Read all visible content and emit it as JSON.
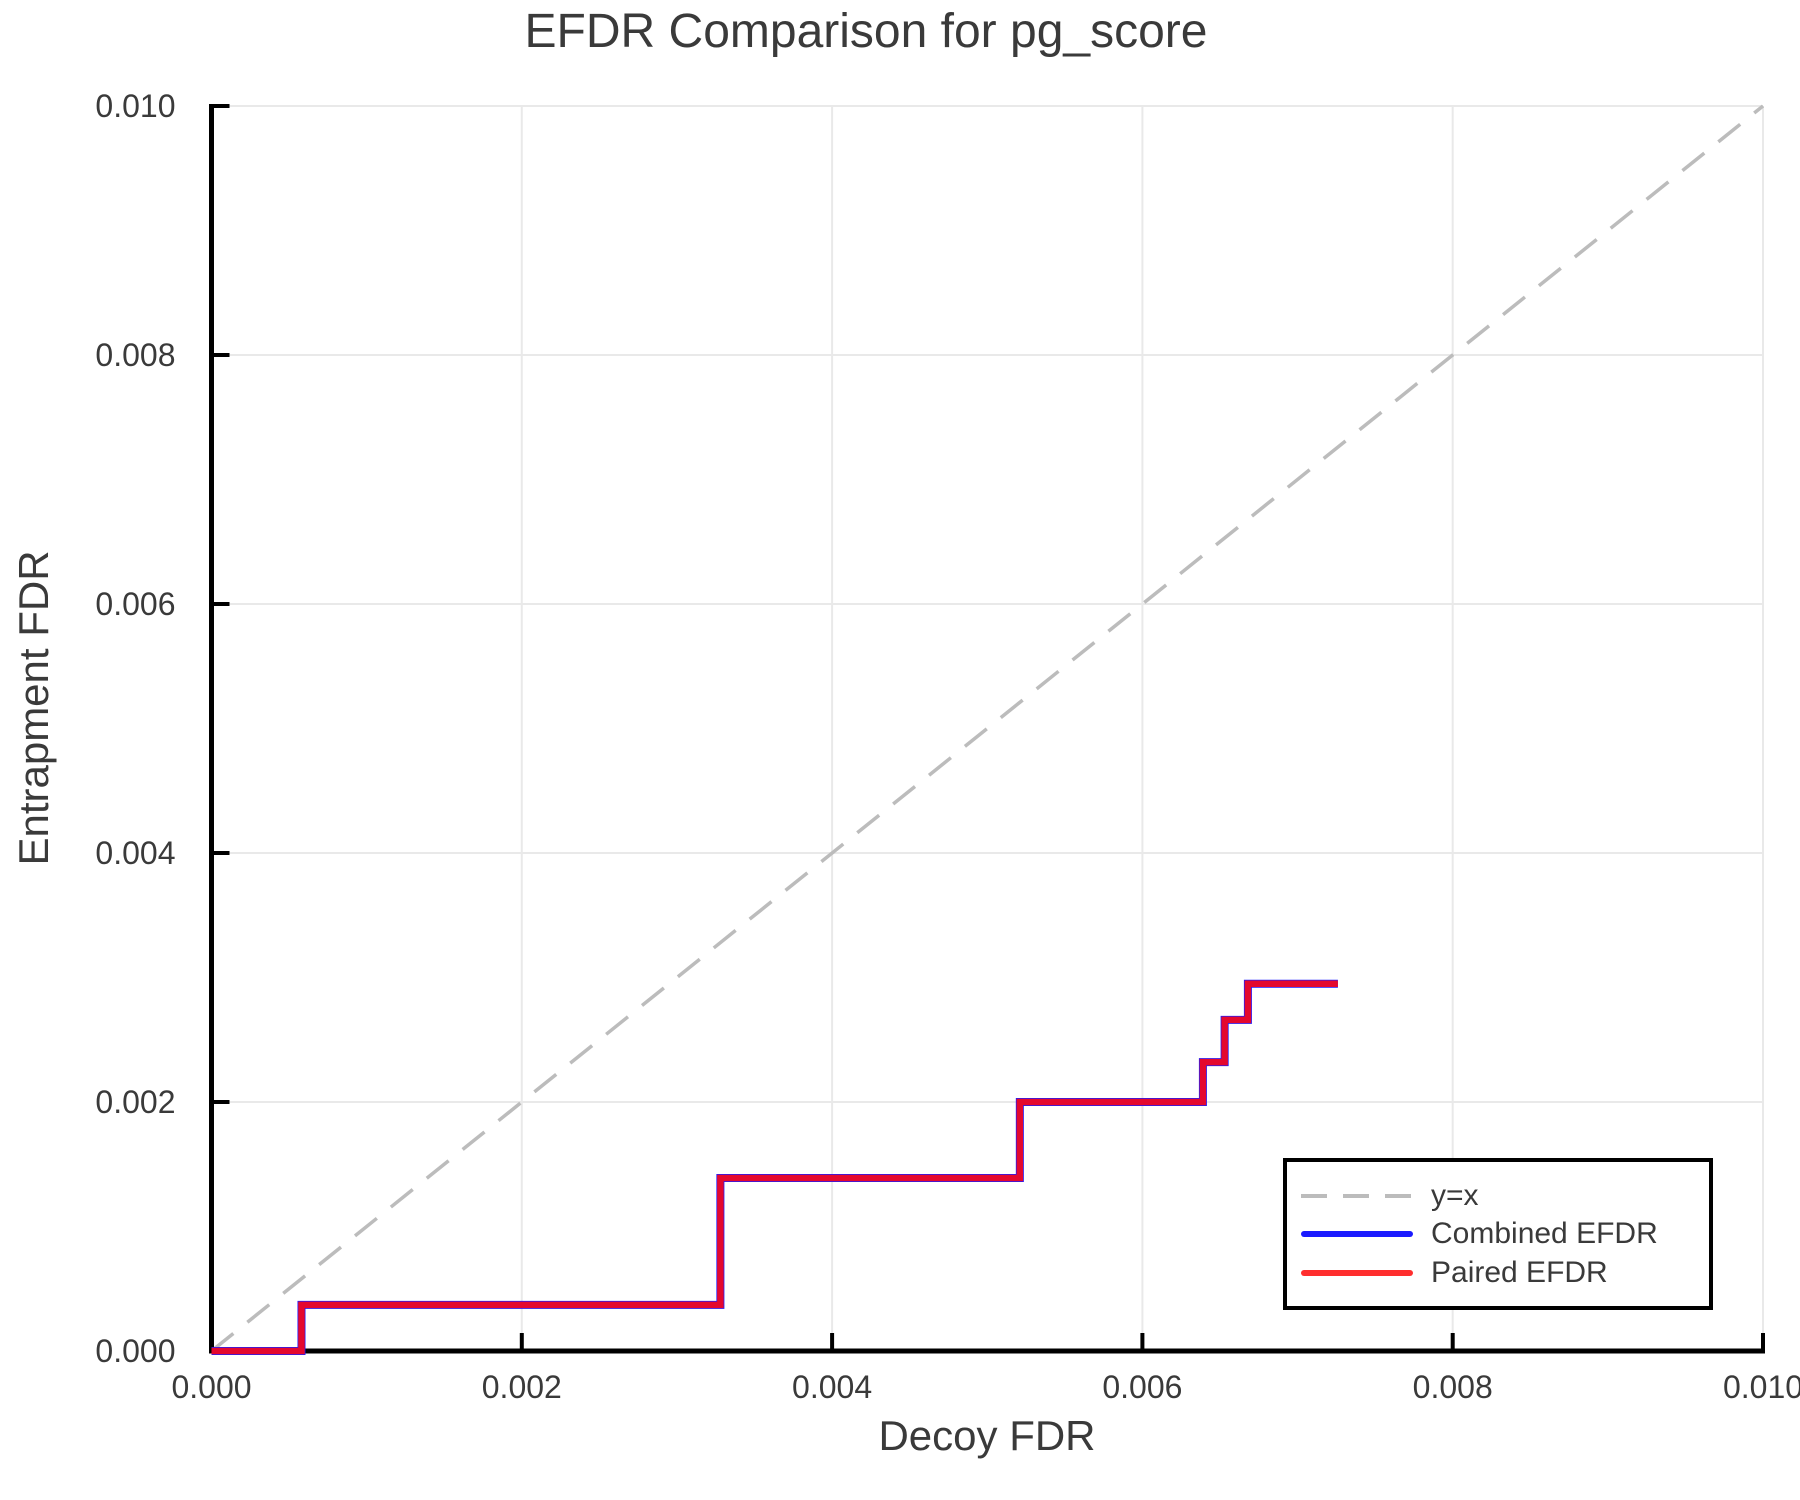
{
  "chart_data": {
    "type": "line",
    "title": "EFDR Comparison for pg_score",
    "xlabel": "Decoy FDR",
    "ylabel": "Entrapment FDR",
    "xlim": [
      0.0,
      0.01
    ],
    "ylim": [
      0.0,
      0.01
    ],
    "xticks": [
      0.0,
      0.002,
      0.004,
      0.006,
      0.008,
      0.01
    ],
    "xtick_labels": [
      "0.000",
      "0.002",
      "0.004",
      "0.006",
      "0.008",
      "0.010"
    ],
    "yticks": [
      0.0,
      0.002,
      0.004,
      0.006,
      0.008,
      0.01
    ],
    "ytick_labels": [
      "0.000",
      "0.002",
      "0.004",
      "0.006",
      "0.008",
      "0.010"
    ],
    "grid": true,
    "legend_position": "lower right",
    "grid_color": "#e9e9e9",
    "axis_color": "#000000",
    "text_color": "#3a3a3a",
    "background_color": "#ffffff",
    "series": [
      {
        "name": "y=x",
        "draw": "line",
        "style": "dashed",
        "color": "#bcbcbc",
        "width": 3.5,
        "points": [
          [
            0.0,
            0.0
          ],
          [
            0.01,
            0.01
          ]
        ]
      },
      {
        "name": "Combined EFDR",
        "draw": "step-post",
        "style": "solid",
        "color": "#1a1aff",
        "width": 8,
        "points": [
          [
            0.0,
            0.0
          ],
          [
            0.00058,
            0.00037
          ],
          [
            0.00328,
            0.00139
          ],
          [
            0.00521,
            0.002
          ],
          [
            0.00639,
            0.00232
          ],
          [
            0.00653,
            0.00266
          ],
          [
            0.00668,
            0.00295
          ],
          [
            0.00726,
            0.00295
          ]
        ]
      },
      {
        "name": "Paired EFDR",
        "draw": "step-post",
        "style": "solid",
        "color": "#e4082e",
        "width": 6.5,
        "points": [
          [
            0.0,
            0.0
          ],
          [
            0.00058,
            0.00037
          ],
          [
            0.00328,
            0.00139
          ],
          [
            0.00521,
            0.002
          ],
          [
            0.00639,
            0.00232
          ],
          [
            0.00653,
            0.00266
          ],
          [
            0.00668,
            0.00295
          ],
          [
            0.00726,
            0.00295
          ]
        ]
      }
    ],
    "legend": [
      {
        "label": "y=x",
        "color": "#bcbcbc",
        "style": "dashed"
      },
      {
        "label": "Combined EFDR",
        "color": "#1a1aff",
        "style": "solid"
      },
      {
        "label": "Paired EFDR",
        "color": "#ff2e2e",
        "style": "solid"
      }
    ]
  }
}
